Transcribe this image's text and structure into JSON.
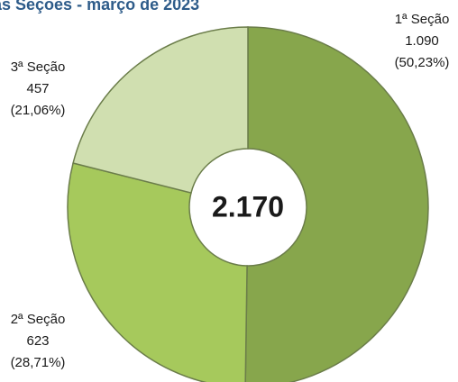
{
  "chart_data": {
    "type": "donut",
    "title": "as Seções - março de 2023",
    "categories": [
      "1ª Seção",
      "2ª Seção",
      "3ª Seção"
    ],
    "values": [
      1090,
      623,
      457
    ],
    "value_labels": [
      "1.090",
      "623",
      "457"
    ],
    "percentages": [
      50.23,
      28.71,
      21.06
    ],
    "percentage_labels": [
      "(50,23%)",
      "(28,71%)",
      "(21,06%)"
    ],
    "colors": [
      "#87a64c",
      "#a6c95c",
      "#d0dfb0"
    ],
    "total": 2170,
    "total_label": "2.170"
  }
}
